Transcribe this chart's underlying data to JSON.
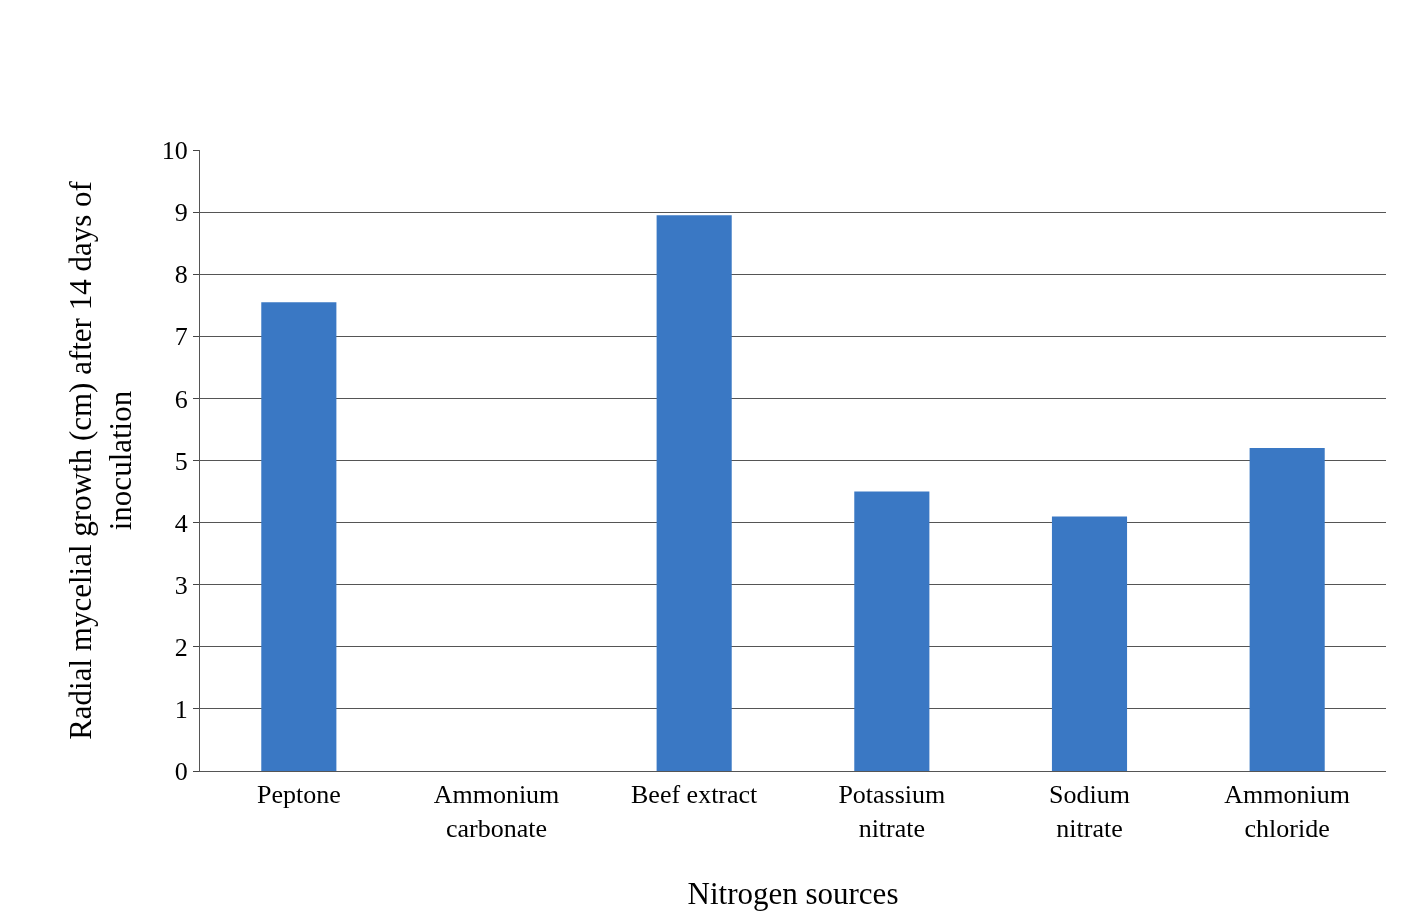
{
  "chart_data": {
    "type": "bar",
    "xlabel": "Nitrogen sources",
    "ylabel": "Radial mycelial growth (cm) after 14 days of inoculation",
    "categories": [
      "Peptone",
      "Ammonium carbonate",
      "Beef extract",
      "Potassium nitrate",
      "Sodium nitrate",
      "Ammonium chloride"
    ],
    "values": [
      7.55,
      0,
      8.95,
      4.5,
      4.1,
      5.2
    ],
    "color": "#3a78c4",
    "ylim": [
      0,
      10
    ],
    "yticks": [
      0,
      1,
      2,
      3,
      4,
      5,
      6,
      7,
      8,
      9,
      10
    ],
    "grid": "y"
  }
}
